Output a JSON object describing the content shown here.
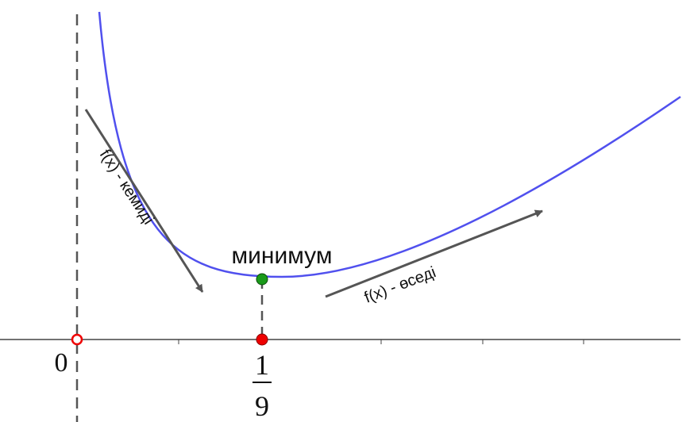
{
  "labels": {
    "minimum": "минимум",
    "origin": "0",
    "numerator": "1",
    "denominator": "9",
    "decreasing": "f(x) - кемиді",
    "increasing": "f(x) - өседі"
  }
}
